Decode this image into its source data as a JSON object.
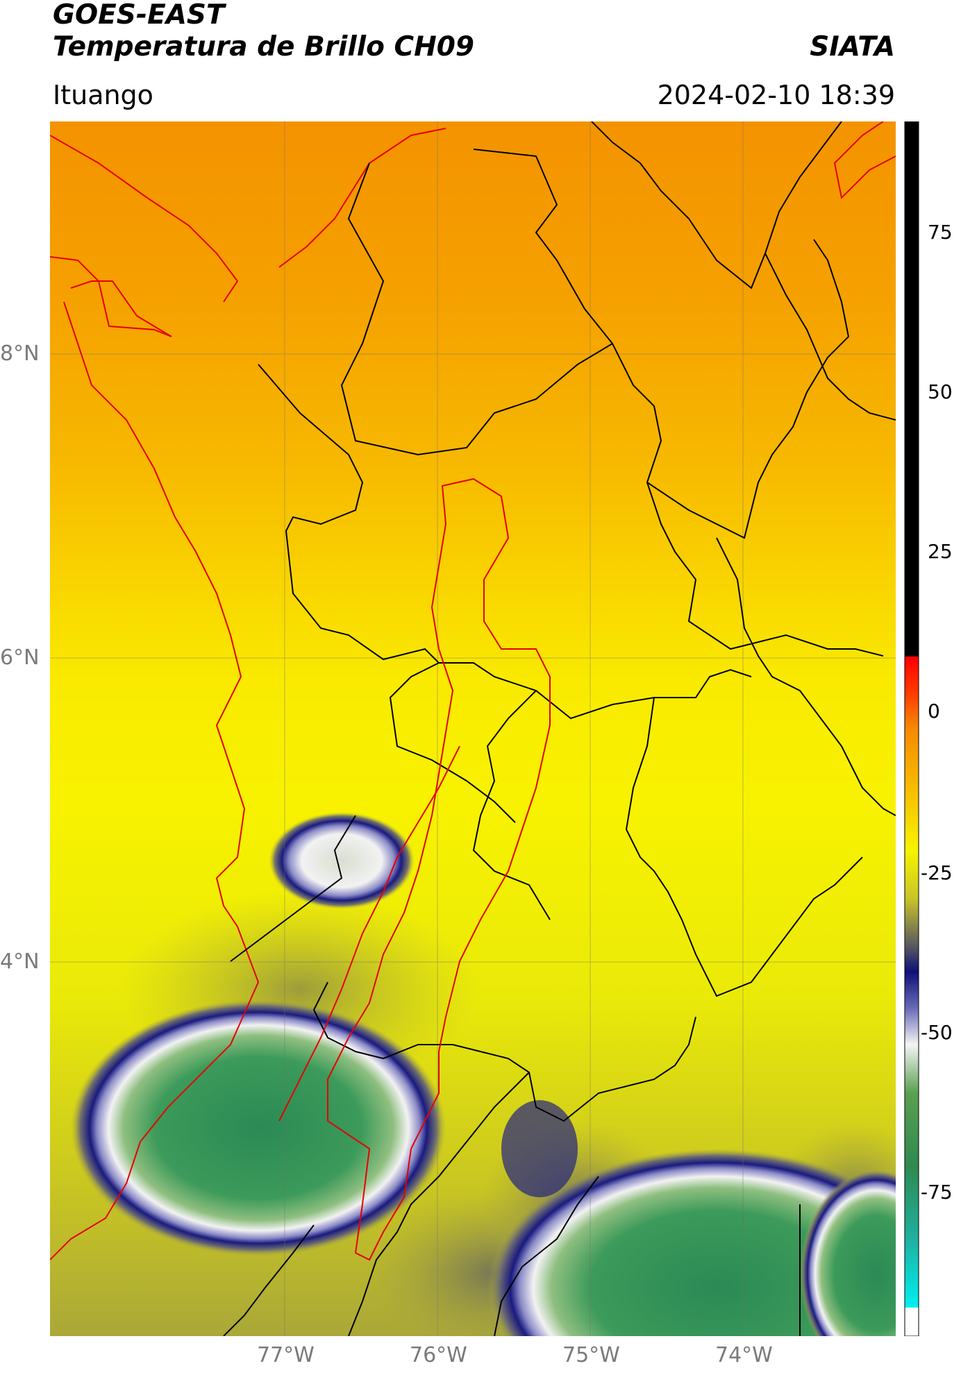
{
  "header": {
    "title_line1": "GOES-EAST",
    "title_line2": "Temperatura de Brillo CH09",
    "brand": "SIATA",
    "location": "Ituango",
    "datetime": "2024-02-10 18:39"
  },
  "axes": {
    "lat_labels": [
      "8°N",
      "6°N",
      "4°N"
    ],
    "lon_labels": [
      "77°W",
      "76°W",
      "75°W",
      "74°W"
    ]
  },
  "colorbar": {
    "ticks": [
      "75",
      "50",
      "25",
      "0",
      "-25",
      "-50",
      "-75"
    ]
  },
  "colors": {
    "warm_orange": "#f59a00",
    "yellow": "#f7f000",
    "olive": "#b9b52e",
    "navy": "#1a1a7a",
    "white": "#f2f2f2",
    "green": "#2e8a50",
    "boundary_black": "#000000",
    "boundary_red": "#e60000"
  }
}
